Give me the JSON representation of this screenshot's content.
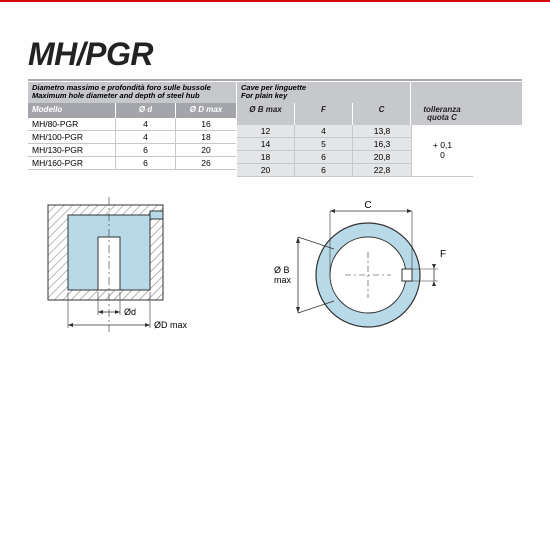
{
  "colors": {
    "red": "#d8000f",
    "gray_header": "#c7c8cb",
    "gray_subheader": "#a3a5aa",
    "cave_bg": "#e4e5e7",
    "diagram_fill": "#b8dae8",
    "diagram_hatch": "#999"
  },
  "title": "MH/PGR",
  "left_table": {
    "header_it": "Diametro massimo e profondità foro sulle bussole",
    "header_en": "Maximum hole diameter and depth of steel hub",
    "cols": {
      "c1": "Modello",
      "c2": "Ø d",
      "c3": "Ø D max"
    },
    "rows": [
      {
        "model": "MH/80-PGR",
        "d": "4",
        "dmax": "16"
      },
      {
        "model": "MH/100-PGR",
        "d": "4",
        "dmax": "18"
      },
      {
        "model": "MH/130-PGR",
        "d": "6",
        "dmax": "20"
      },
      {
        "model": "MH/160-PGR",
        "d": "6",
        "dmax": "26"
      }
    ]
  },
  "right_table": {
    "header_it": "Cave per linguette",
    "header_en": "For plain key",
    "cols": {
      "r1": "Ø B max",
      "r2": "F",
      "r3": "C",
      "r4a": "tolleranza",
      "r4b": "quota C"
    },
    "rows": [
      {
        "bmax": "12",
        "f": "4",
        "c": "13,8"
      },
      {
        "bmax": "14",
        "f": "5",
        "c": "16,3"
      },
      {
        "bmax": "18",
        "f": "6",
        "c": "20,8"
      },
      {
        "bmax": "20",
        "f": "6",
        "c": "22,8"
      }
    ],
    "tol_top": "+ 0,1",
    "tol_bot": "0"
  },
  "diagram_labels": {
    "od": "Ød",
    "odmax": "ØD max",
    "c": "C",
    "f": "F",
    "obmax_1": "Ø B",
    "obmax_2": "max"
  }
}
